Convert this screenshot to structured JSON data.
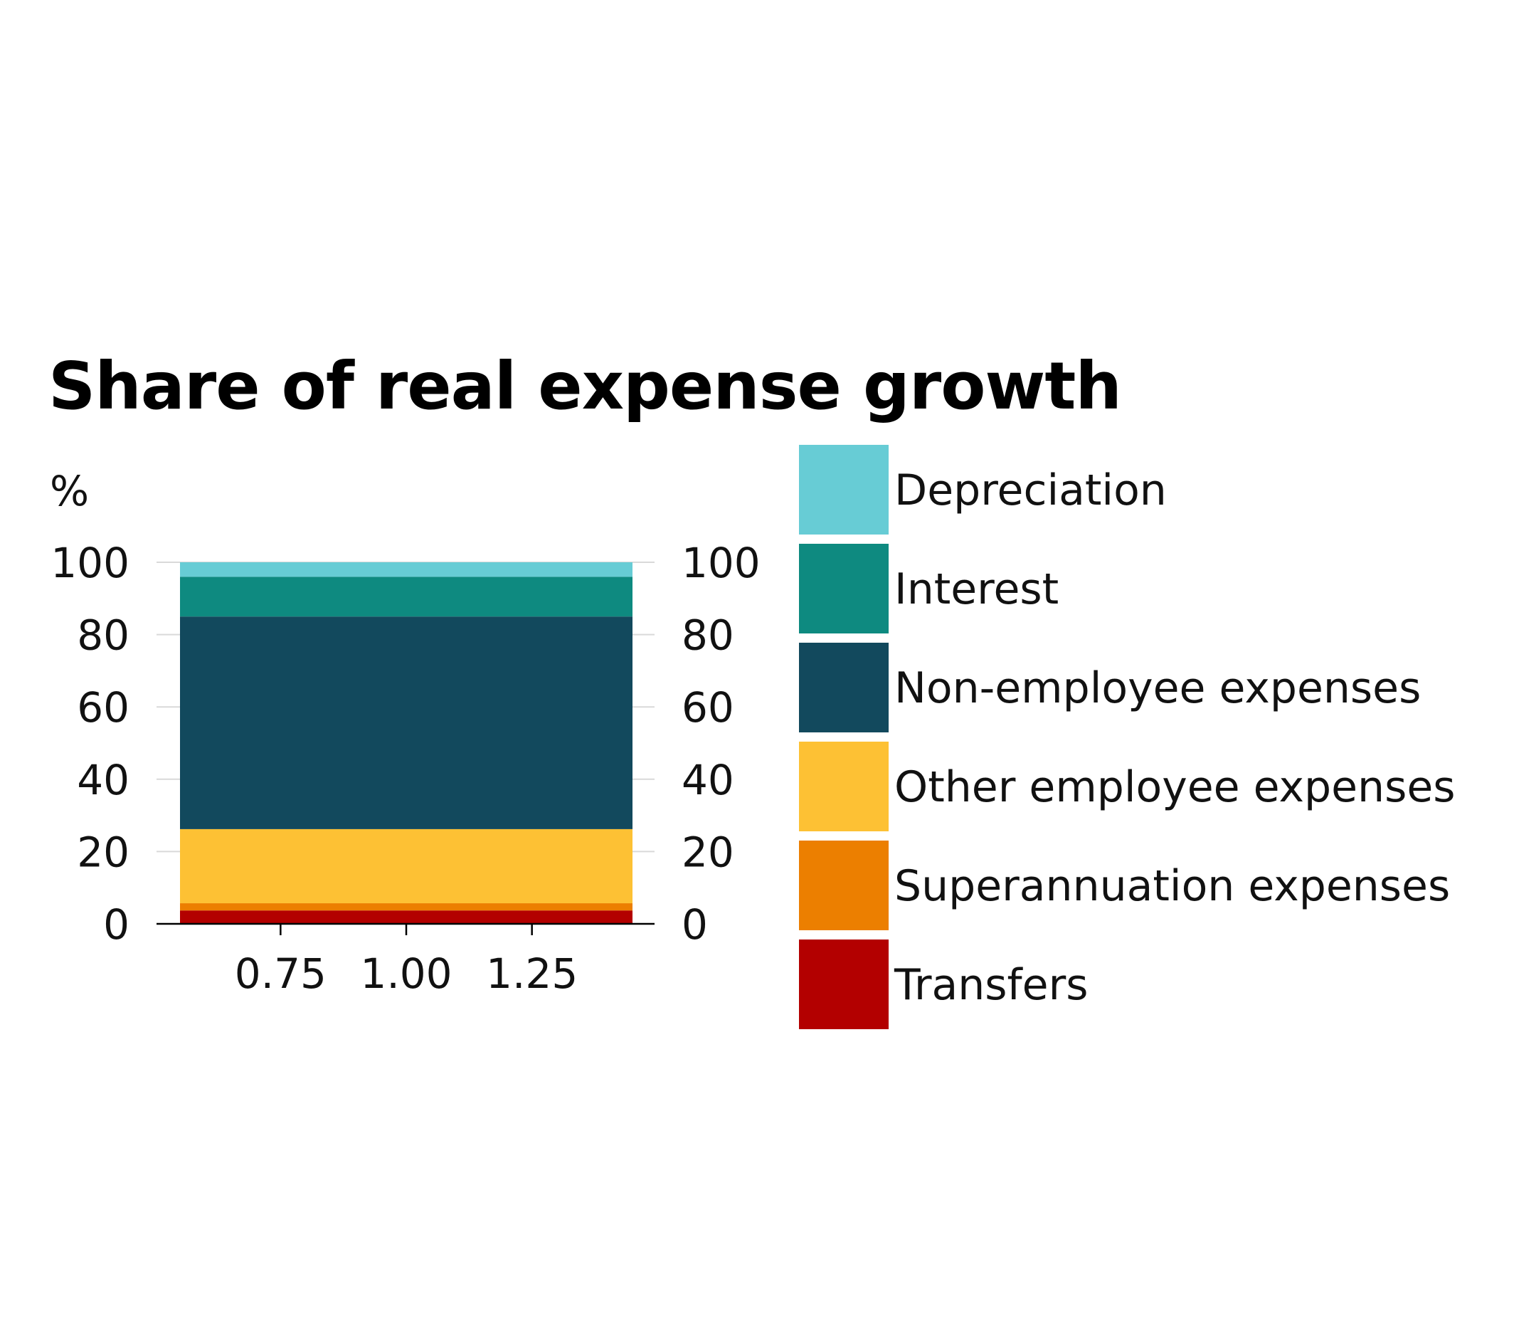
{
  "chart_data": {
    "type": "bar",
    "stacked": true,
    "title": "Share of real expense growth",
    "unit_label": "%",
    "x": {
      "range": [
        0.55,
        1.45
      ],
      "ticks": [
        0.75,
        1.0,
        1.25
      ],
      "tick_labels": [
        "0.75",
        "1.00",
        "1.25"
      ]
    },
    "y": {
      "range": [
        0,
        100
      ],
      "ticks": [
        0,
        20,
        40,
        60,
        80,
        100
      ],
      "tick_labels": [
        "0",
        "20",
        "40",
        "60",
        "80",
        "100"
      ],
      "dual_axis": true
    },
    "grid": "horizontal",
    "legend_position": "right",
    "bar": {
      "x_start": 0.55,
      "x_end": 1.45
    },
    "series": [
      {
        "name": "Transfers",
        "value": 3.7,
        "color": "#b30000"
      },
      {
        "name": "Superannuation expenses",
        "value": 2.0,
        "color": "#ec7f00"
      },
      {
        "name": "Other employee expenses",
        "value": 20.5,
        "color": "#fdc134"
      },
      {
        "name": "Non-employee expenses",
        "value": 58.8,
        "color": "#12495d"
      },
      {
        "name": "Interest",
        "value": 11.0,
        "color": "#0e8a80"
      },
      {
        "name": "Depreciation",
        "value": 4.0,
        "color": "#67ccd5"
      }
    ]
  }
}
